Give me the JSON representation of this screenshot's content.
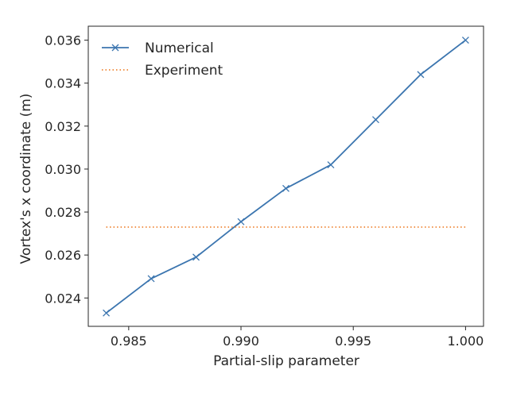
{
  "chart_data": {
    "type": "line",
    "xlabel": "Partial-slip parameter",
    "ylabel": "Vortex's x coordinate (m)",
    "xlim": [
      0.9832,
      1.0008
    ],
    "ylim": [
      0.02268,
      0.03665
    ],
    "x_ticks": [
      0.985,
      0.99,
      0.995,
      1.0
    ],
    "x_tick_labels": [
      "0.985",
      "0.990",
      "0.995",
      "1.000"
    ],
    "y_ticks": [
      0.024,
      0.026,
      0.028,
      0.03,
      0.032,
      0.034,
      0.036
    ],
    "y_tick_labels": [
      "0.024",
      "0.026",
      "0.028",
      "0.030",
      "0.032",
      "0.034",
      "0.036"
    ],
    "grid": false,
    "legend_position": "top-left",
    "series": [
      {
        "name": "Numerical",
        "style": "solid",
        "marker": "x",
        "color": "#3b75af",
        "x": [
          0.984,
          0.986,
          0.988,
          0.99,
          0.992,
          0.994,
          0.996,
          0.998,
          1.0
        ],
        "y": [
          0.0233,
          0.0249,
          0.0259,
          0.02755,
          0.0291,
          0.0302,
          0.0323,
          0.0344,
          0.036
        ]
      },
      {
        "name": "Experiment",
        "style": "dotted",
        "color": "#ef8636",
        "x": [
          0.984,
          1.0
        ],
        "y": [
          0.0273,
          0.0273
        ]
      }
    ]
  }
}
